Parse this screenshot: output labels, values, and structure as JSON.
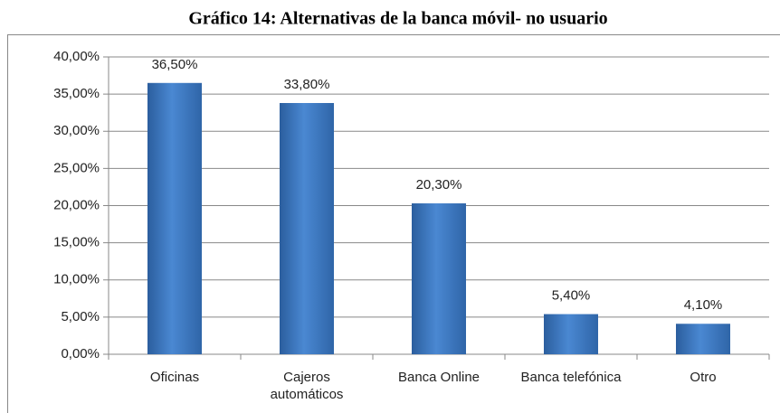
{
  "chart_data": {
    "type": "bar",
    "title": "Gráfico 14: Alternativas de la banca móvil- no usuario",
    "categories": [
      "Oficinas",
      "Cajeros automáticos",
      "Banca Online",
      "Banca telefónica",
      "Otro"
    ],
    "values": [
      36.5,
      33.8,
      20.3,
      5.4,
      4.1
    ],
    "value_labels": [
      "36,50%",
      "33,80%",
      "20,30%",
      "5,40%",
      "4,10%"
    ],
    "color": "#3a72b8",
    "ylim": [
      0,
      40
    ],
    "yticks": [
      {
        "value": 0,
        "label": "0,00%"
      },
      {
        "value": 5,
        "label": "5,00%"
      },
      {
        "value": 10,
        "label": "10,00%"
      },
      {
        "value": 15,
        "label": "15,00%"
      },
      {
        "value": 20,
        "label": "20,00%"
      },
      {
        "value": 25,
        "label": "25,00%"
      },
      {
        "value": 30,
        "label": "30,00%"
      },
      {
        "value": 35,
        "label": "35,00%"
      },
      {
        "value": 40,
        "label": "40,00%"
      }
    ],
    "grid": true
  }
}
